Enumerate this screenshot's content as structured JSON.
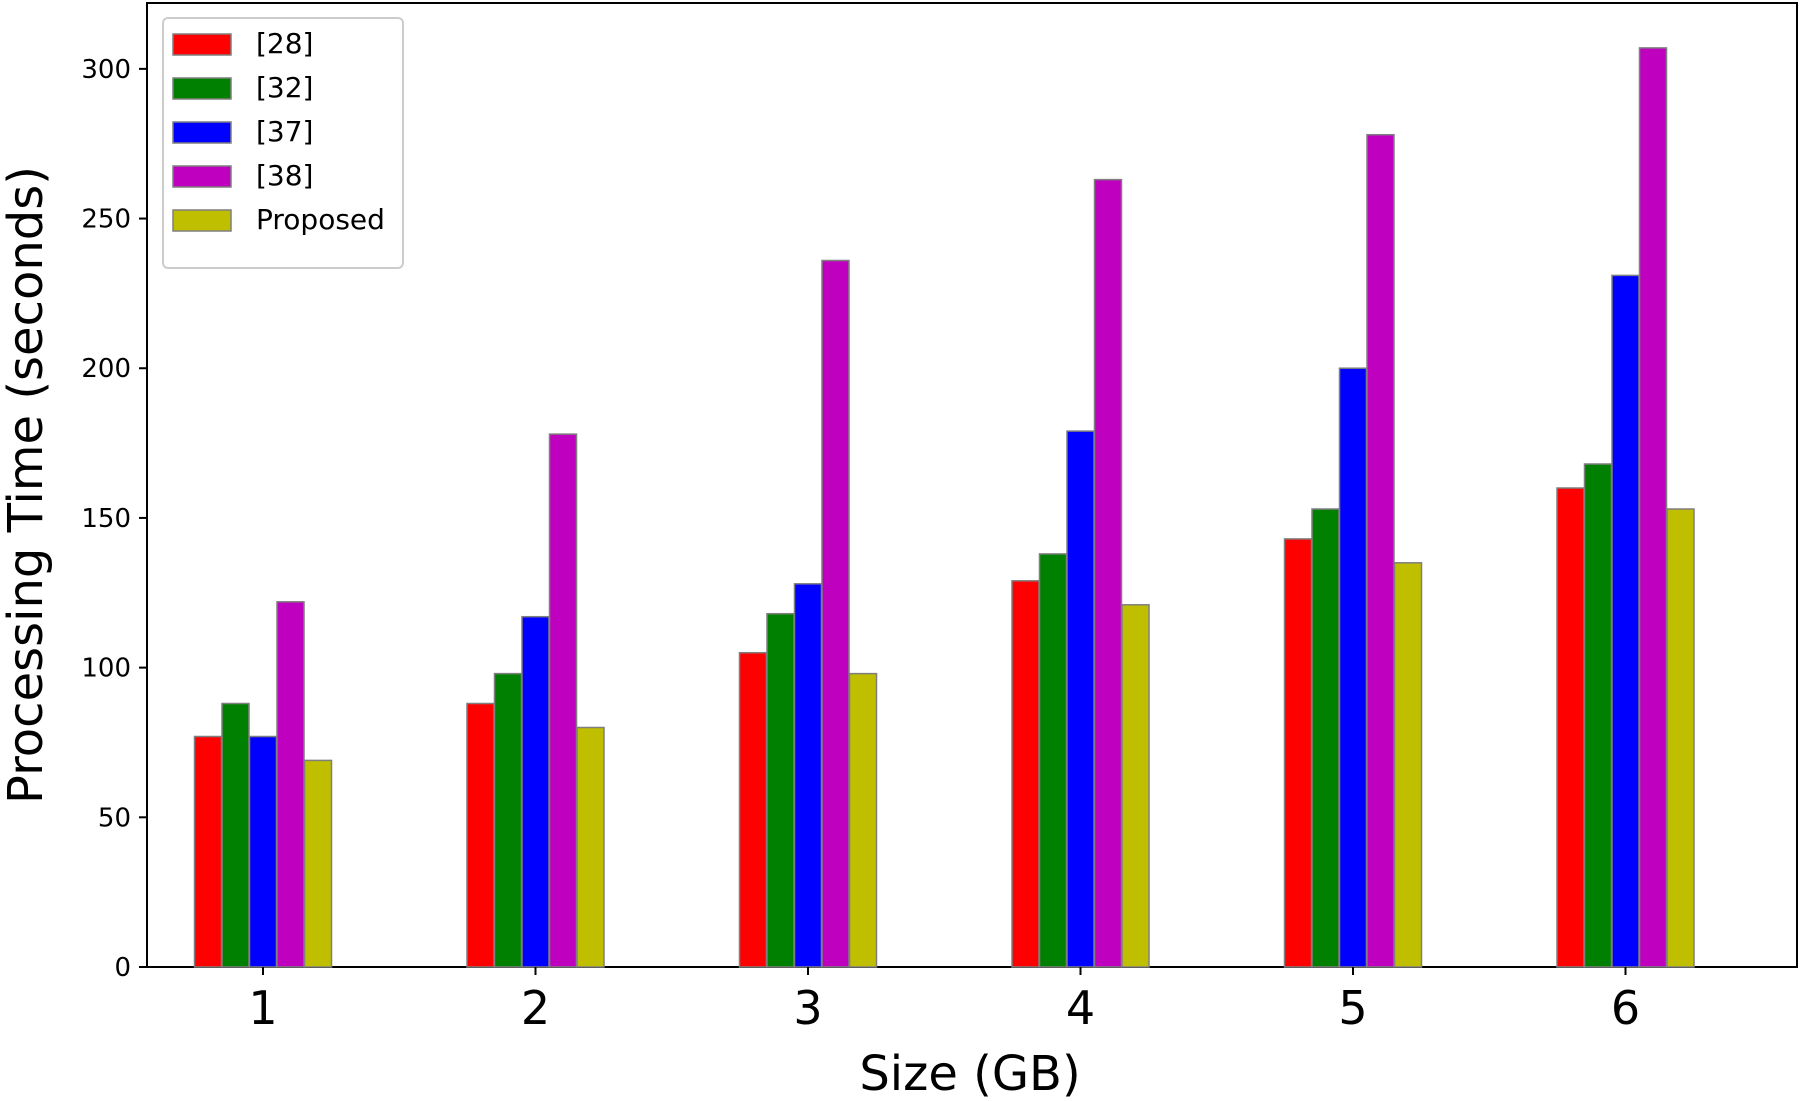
{
  "chart_data": {
    "type": "bar",
    "title": "",
    "xlabel": "Size (GB)",
    "ylabel": "Processing Time (seconds)",
    "categories": [
      "1",
      "2",
      "3",
      "4",
      "5",
      "6"
    ],
    "ylim": [
      0,
      322
    ],
    "yticks": [
      "0",
      "50",
      "100",
      "150",
      "200",
      "250",
      "300"
    ],
    "legend_position": "top-left",
    "grid": false,
    "series": [
      {
        "name": "[28]",
        "color": "#ff0000",
        "values": [
          77,
          88,
          105,
          129,
          143,
          160
        ]
      },
      {
        "name": "[32]",
        "color": "#008000",
        "values": [
          88,
          98,
          118,
          138,
          153,
          168
        ]
      },
      {
        "name": "[37]",
        "color": "#0000ff",
        "values": [
          77,
          117,
          128,
          179,
          200,
          231
        ]
      },
      {
        "name": "[38]",
        "color": "#bf00bf",
        "values": [
          122,
          178,
          236,
          263,
          278,
          307
        ]
      },
      {
        "name": "Proposed",
        "color": "#bfbf00",
        "values": [
          69,
          80,
          98,
          121,
          135,
          153
        ]
      }
    ]
  }
}
